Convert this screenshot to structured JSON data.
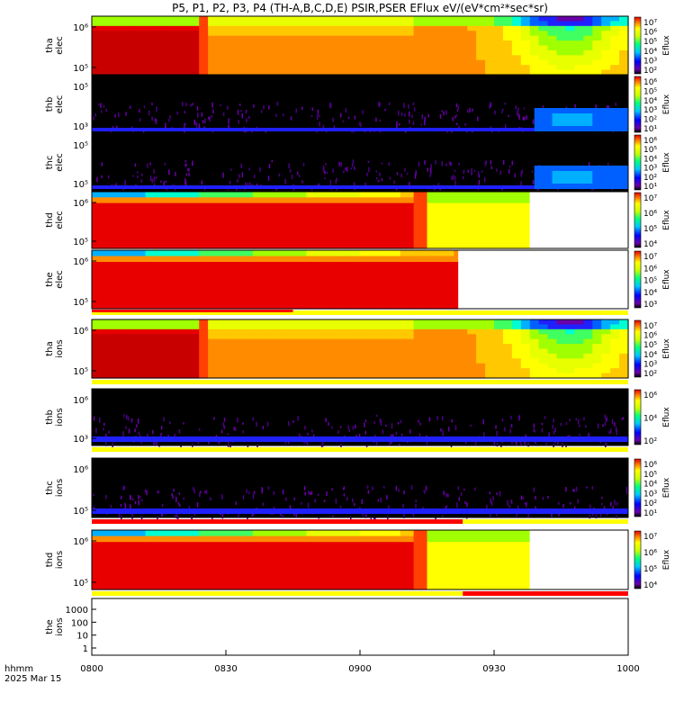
{
  "chart_data": {
    "type": "heatmap",
    "title": "P5, P1, P2, P3, P4 (TH-A,B,C,D,E) PSIR,PSER EFlux eV/(eV*cm²*sec*sr)",
    "x_axis": {
      "label_line1": "hhmm",
      "label_line2": "2025 Mar 15",
      "ticks": [
        "0800",
        "0830",
        "0900",
        "0930",
        "1000"
      ],
      "range_minutes": [
        0,
        120
      ]
    },
    "colorbar_label": "Eflux",
    "panels": [
      {
        "name": "tha elec",
        "line1": "tha",
        "line2": "elec",
        "y_ticks": [
          "10⁶",
          "10⁵"
        ],
        "colorbar_ticks": [
          "10⁷",
          "10⁶",
          "10⁵",
          "10⁴",
          "10³",
          "10²"
        ],
        "pattern": "hot_then_cool",
        "data_end_min": 120,
        "has_flag_bar": false
      },
      {
        "name": "thb elec",
        "line1": "thb",
        "line2": "elec",
        "y_ticks": [
          "10⁵",
          "10³"
        ],
        "colorbar_ticks": [
          "10⁶",
          "10⁵",
          "10⁴",
          "10³",
          "10²",
          "10¹"
        ],
        "pattern": "sparse",
        "data_end_min": 120,
        "has_flag_bar": false
      },
      {
        "name": "thc elec",
        "line1": "thc",
        "line2": "elec",
        "y_ticks": [
          "10⁵",
          "10⁵"
        ],
        "colorbar_ticks": [
          "10⁶",
          "10⁵",
          "10⁴",
          "10³",
          "10²",
          "10¹"
        ],
        "pattern": "sparse",
        "data_end_min": 120,
        "has_flag_bar": false
      },
      {
        "name": "thd elec",
        "line1": "thd",
        "line2": "elec",
        "y_ticks": [
          "10⁶",
          "10⁵"
        ],
        "colorbar_ticks": [
          "10⁷",
          "10⁶",
          "10⁵",
          "10⁴"
        ],
        "pattern": "block",
        "data_end_min": 98,
        "has_flag_bar": false
      },
      {
        "name": "the elec",
        "line1": "the",
        "line2": "elec",
        "y_ticks": [
          "10⁶",
          "10⁵"
        ],
        "colorbar_ticks": [
          "10⁷",
          "10⁶",
          "10⁵",
          "10⁴",
          "10³"
        ],
        "pattern": "block_short",
        "data_end_min": 82,
        "has_flag_bar": true
      },
      {
        "name": "tha ions",
        "line1": "tha",
        "line2": "ions",
        "y_ticks": [
          "10⁶",
          "10⁵"
        ],
        "colorbar_ticks": [
          "10⁷",
          "10⁶",
          "10⁵",
          "10⁴",
          "10³",
          "10²"
        ],
        "pattern": "hot_then_cool",
        "data_end_min": 120,
        "has_flag_bar": true
      },
      {
        "name": "thb ions",
        "line1": "thb",
        "line2": "ions",
        "y_ticks": [
          "10⁶",
          "10³"
        ],
        "colorbar_ticks": [
          "10⁶",
          "10⁴",
          "10²"
        ],
        "pattern": "sparse_ions",
        "data_end_min": 120,
        "has_flag_bar": true
      },
      {
        "name": "thc ions",
        "line1": "thc",
        "line2": "ions",
        "y_ticks": [
          "10⁶",
          "10⁵"
        ],
        "colorbar_ticks": [
          "10⁶",
          "10⁵",
          "10⁴",
          "10³",
          "10²",
          "10¹"
        ],
        "pattern": "sparse_ions",
        "data_end_min": 120,
        "has_flag_bar": true
      },
      {
        "name": "thd ions",
        "line1": "thd",
        "line2": "ions",
        "y_ticks": [
          "10⁶",
          "10⁵"
        ],
        "colorbar_ticks": [
          "10⁷",
          "10⁶",
          "10⁵",
          "10⁴"
        ],
        "pattern": "block",
        "data_end_min": 98,
        "has_flag_bar": true
      },
      {
        "name": "the ions",
        "line1": "the",
        "line2": "ions",
        "y_ticks": [
          "1000",
          "100",
          "10",
          "1"
        ],
        "colorbar_ticks": [],
        "pattern": "empty",
        "data_end_min": 0,
        "has_flag_bar": false
      }
    ],
    "flag_bars": [
      {
        "after_panel": "the elec",
        "segments": [
          {
            "from_min": 0,
            "to_min": 120,
            "color": "#ffff00"
          }
        ],
        "marker": {
          "from_min": 0,
          "to_min": 45,
          "color": "#ff0000"
        }
      },
      {
        "after_panel": "tha ions",
        "segments": [
          {
            "from_min": 0,
            "to_min": 120,
            "color": "#ffff00"
          }
        ]
      },
      {
        "after_panel": "thb ions",
        "segments": [
          {
            "from_min": 0,
            "to_min": 120,
            "color": "#ffff00"
          }
        ]
      },
      {
        "after_panel": "thc ions",
        "segments": [
          {
            "from_min": 0,
            "to_min": 83,
            "color": "#ff0000"
          },
          {
            "from_min": 83,
            "to_min": 120,
            "color": "#ffff00"
          }
        ]
      },
      {
        "after_panel": "thd ions",
        "segments": [
          {
            "from_min": 0,
            "to_min": 83,
            "color": "#ffff00"
          },
          {
            "from_min": 83,
            "to_min": 120,
            "color": "#ff0000"
          }
        ]
      }
    ]
  }
}
